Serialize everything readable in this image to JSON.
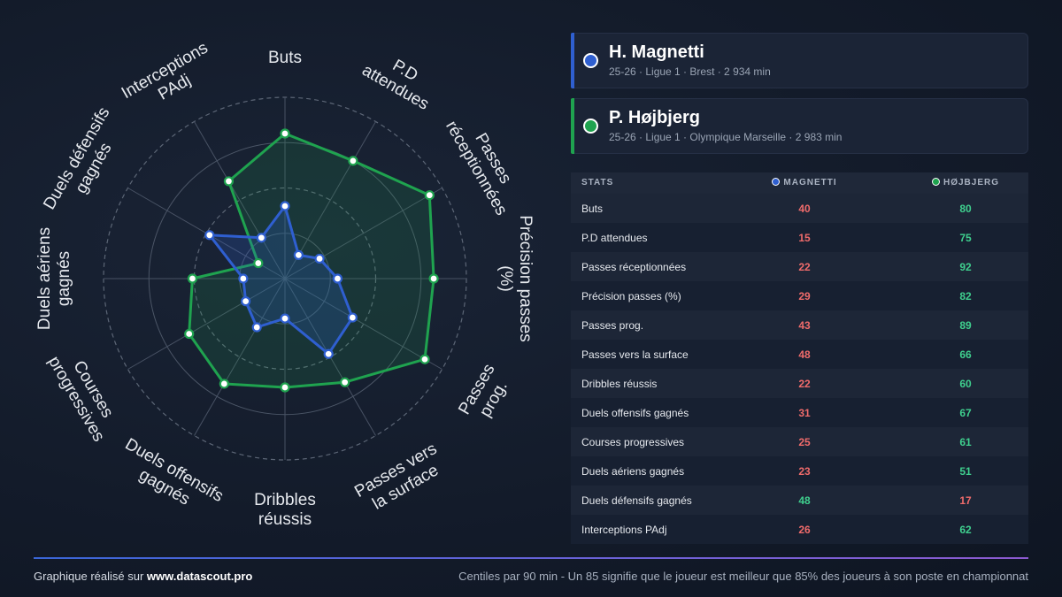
{
  "players": [
    {
      "name": "H. Magnetti",
      "meta": "25-26 · Ligue 1 · Brest · 2 934 min",
      "color": "#2f5fd0",
      "short": "MAGNETTI"
    },
    {
      "name": "P. Højbjerg",
      "meta": "25-26 · Ligue 1 · Olympique Marseille · 2 983 min",
      "color": "#1fa34f",
      "short": "HØJBJERG"
    }
  ],
  "table": {
    "header_stats": "STATS"
  },
  "chart_data": {
    "type": "radar",
    "categories": [
      "Buts",
      "P.D attendues",
      "Passes réceptionnées",
      "Précision passes (%)",
      "Passes prog.",
      "Passes vers la surface",
      "Dribbles réussis",
      "Duels offensifs gagnés",
      "Courses progressives",
      "Duels aériens gagnés",
      "Duels défensifs gagnés",
      "Interceptions PAdj"
    ],
    "series": [
      {
        "name": "MAGNETTI",
        "values": [
          40,
          15,
          22,
          29,
          43,
          48,
          22,
          31,
          25,
          23,
          48,
          26
        ]
      },
      {
        "name": "HØJBJERG",
        "values": [
          80,
          75,
          92,
          82,
          89,
          66,
          60,
          67,
          61,
          51,
          17,
          62
        ]
      }
    ],
    "rlim": [
      0,
      100
    ],
    "grid": true
  },
  "footer": {
    "credit_prefix": "Graphique réalisé sur",
    "credit_site": "www.datascout.pro",
    "note": "Centiles par 90 min - Un 85 signifie que le joueur est meilleur que 85% des joueurs à son poste en championnat"
  }
}
